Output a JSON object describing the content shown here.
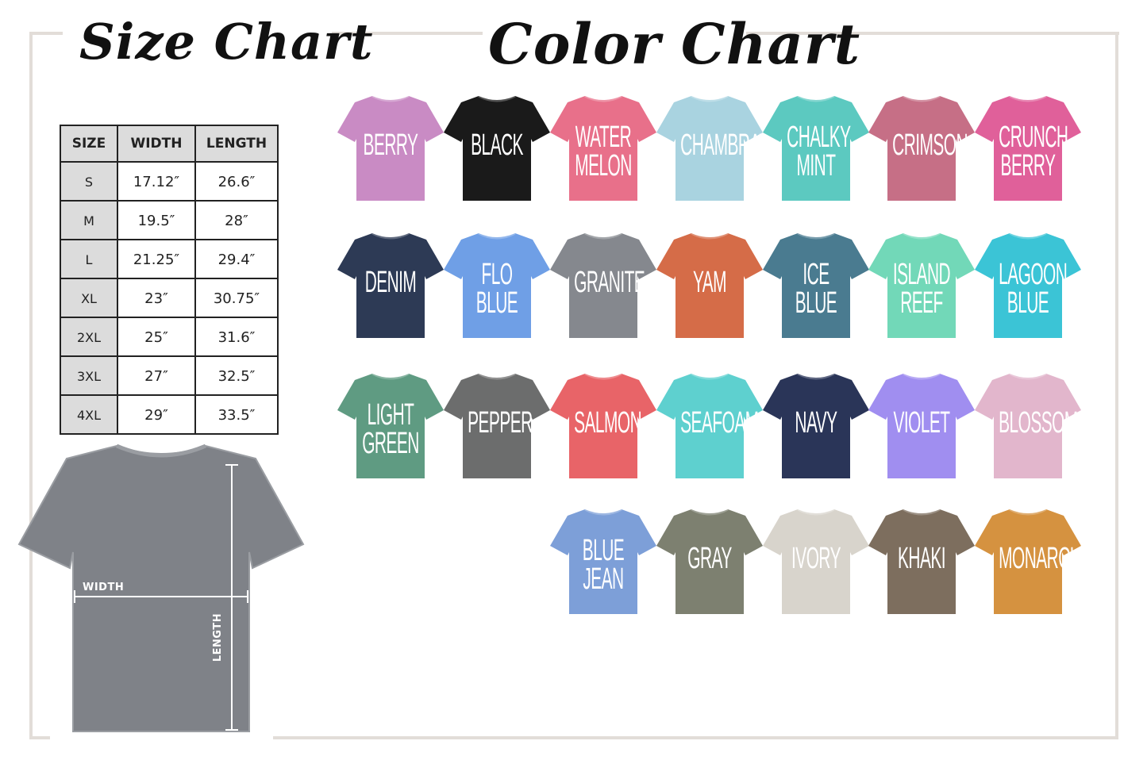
{
  "size_chart": {
    "title": "Size Chart",
    "headers": [
      "SIZE",
      "WIDTH",
      "LENGTH"
    ],
    "rows": [
      [
        "S",
        "17.12″",
        "26.6″"
      ],
      [
        "M",
        "19.5″",
        "28″"
      ],
      [
        "L",
        "21.25″",
        "29.4″"
      ],
      [
        "XL",
        "23″",
        "30.75″"
      ],
      [
        "2XL",
        "25″",
        "31.6″"
      ],
      [
        "3XL",
        "27″",
        "32.5″"
      ],
      [
        "4XL",
        "29″",
        "33.5″"
      ]
    ],
    "diagram": {
      "width_label": "WIDTH",
      "length_label": "LENGTH",
      "shirt_color": "#7f8288"
    }
  },
  "color_chart": {
    "title": "Color Chart",
    "colors": [
      {
        "name": "BERRY",
        "hex": "#c98bc4"
      },
      {
        "name": "BLACK",
        "hex": "#1a1a1a"
      },
      {
        "name": "WATER\nMELON",
        "hex": "#e8708a"
      },
      {
        "name": "CHAMBRAY",
        "hex": "#a9d3e0"
      },
      {
        "name": "CHALKY\nMINT",
        "hex": "#5cc9c0"
      },
      {
        "name": "CRIMSON",
        "hex": "#c66f86"
      },
      {
        "name": "CRUNCH\nBERRY",
        "hex": "#e0609a"
      },
      {
        "name": "DENIM",
        "hex": "#2d3a55"
      },
      {
        "name": "FLO\nBLUE",
        "hex": "#6f9fe6"
      },
      {
        "name": "GRANITE",
        "hex": "#85888e"
      },
      {
        "name": "YAM",
        "hex": "#d56c48"
      },
      {
        "name": "ICE\nBLUE",
        "hex": "#4a7b90"
      },
      {
        "name": "ISLAND\nREEF",
        "hex": "#72d8b8"
      },
      {
        "name": "LAGOON\nBLUE",
        "hex": "#3bc4d6"
      },
      {
        "name": "LIGHT\nGREEN",
        "hex": "#5f9b82"
      },
      {
        "name": "PEPPER",
        "hex": "#6c6d6d"
      },
      {
        "name": "SALMON",
        "hex": "#e86468"
      },
      {
        "name": "SEAFOAM",
        "hex": "#5ed0cf"
      },
      {
        "name": "NAVY",
        "hex": "#2a3558"
      },
      {
        "name": "VIOLET",
        "hex": "#a08ef0"
      },
      {
        "name": "BLOSSOM",
        "hex": "#e2b6cc"
      },
      {
        "name": "BLUE\nJEAN",
        "hex": "#7d9fd8"
      },
      {
        "name": "GRAY",
        "hex": "#7d8070"
      },
      {
        "name": "IVORY",
        "hex": "#d8d4cc"
      },
      {
        "name": "KHAKI",
        "hex": "#7d6e5e"
      },
      {
        "name": "MONARCH",
        "hex": "#d59240"
      }
    ]
  }
}
